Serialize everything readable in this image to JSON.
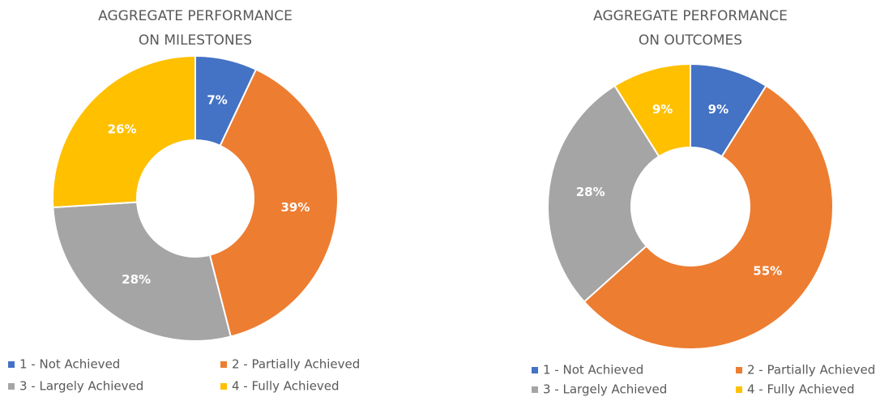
{
  "chart_data": [
    {
      "type": "donut",
      "title": [
        "AGGREGATE PERFORMANCE",
        "ON MILESTONES"
      ],
      "categories": [
        "1 - Not Achieved",
        "2 - Partially Achieved",
        "3 - Largely Achieved",
        "4 - Fully Achieved"
      ],
      "values": [
        7,
        39,
        28,
        26
      ],
      "value_labels": [
        "7%",
        "39%",
        "28%",
        "26%"
      ],
      "colors": [
        "#4472c4",
        "#ed7d31",
        "#a5a5a5",
        "#ffc000"
      ],
      "legend": "bottom"
    },
    {
      "type": "donut",
      "title": [
        "AGGREGATE PERFORMANCE",
        "ON OUTCOMES"
      ],
      "categories": [
        "1 - Not Achieved",
        "2 - Partially Achieved",
        "3 - Largely Achieved",
        "4 - Fully Achieved"
      ],
      "values": [
        9,
        55,
        28,
        9
      ],
      "value_labels": [
        "9%",
        "55%",
        "28%",
        "9%"
      ],
      "colors": [
        "#4472c4",
        "#ed7d31",
        "#a5a5a5",
        "#ffc000"
      ],
      "legend": "bottom"
    }
  ]
}
